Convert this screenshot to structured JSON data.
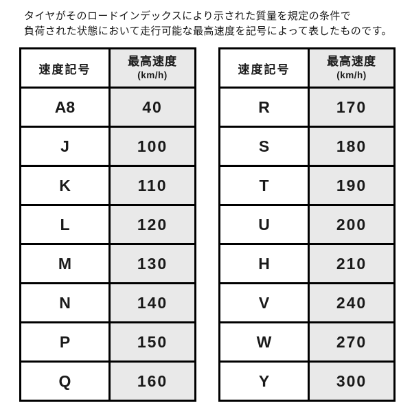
{
  "intro": {
    "line1": "タイヤがそのロードインデックスにより示された質量を規定の条件で",
    "line2": "負荷された状態において走行可能な最高速度を記号によって表したものです。"
  },
  "tables": [
    {
      "name": "speed-symbols-left",
      "col_symbol_header": "速度記号",
      "col_speed_header": "最高速度",
      "col_speed_unit": "(km/h)",
      "rows": [
        {
          "symbol": "A8",
          "speed": "40"
        },
        {
          "symbol": "J",
          "speed": "100"
        },
        {
          "symbol": "K",
          "speed": "110"
        },
        {
          "symbol": "L",
          "speed": "120"
        },
        {
          "symbol": "M",
          "speed": "130"
        },
        {
          "symbol": "N",
          "speed": "140"
        },
        {
          "symbol": "P",
          "speed": "150"
        },
        {
          "symbol": "Q",
          "speed": "160"
        }
      ]
    },
    {
      "name": "speed-symbols-right",
      "col_symbol_header": "速度記号",
      "col_speed_header": "最高速度",
      "col_speed_unit": "(km/h)",
      "rows": [
        {
          "symbol": "R",
          "speed": "170"
        },
        {
          "symbol": "S",
          "speed": "180"
        },
        {
          "symbol": "T",
          "speed": "190"
        },
        {
          "symbol": "U",
          "speed": "200"
        },
        {
          "symbol": "H",
          "speed": "210"
        },
        {
          "symbol": "V",
          "speed": "240"
        },
        {
          "symbol": "W",
          "speed": "270"
        },
        {
          "symbol": "Y",
          "speed": "300"
        }
      ]
    }
  ],
  "colors": {
    "speed_cell_background": "#e9e9e9",
    "border": "#000000",
    "text": "#1a1a1a"
  }
}
